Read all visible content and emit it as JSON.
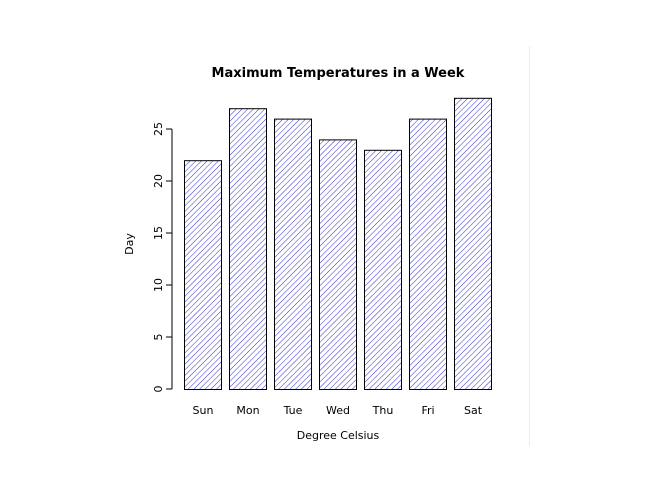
{
  "chart_data": {
    "type": "bar",
    "title": "Maximum Temperatures in a Week",
    "xlabel": "Degree Celsius",
    "ylabel": "Day",
    "categories": [
      "Sun",
      "Mon",
      "Tue",
      "Wed",
      "Thu",
      "Fri",
      "Sat"
    ],
    "values": [
      22,
      27,
      26,
      24,
      23,
      26,
      28
    ],
    "ylim": [
      0,
      28
    ],
    "y_ticks": [
      0,
      5,
      10,
      15,
      20,
      25
    ],
    "bar_fill": "hatched",
    "hatch_color": "#3333cc",
    "bar_border_color": "#000000",
    "grid": false,
    "legend": "none"
  }
}
